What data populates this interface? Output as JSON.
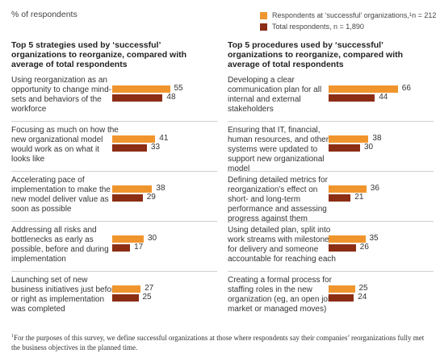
{
  "unit_label": "% of respondents",
  "legend": {
    "successful": {
      "label": "Respondents at ‘successful’ organizations,",
      "sup": "1",
      "n": " n = 212",
      "color": "#f0952d"
    },
    "total": {
      "label": "Total respondents, n = 1,890",
      "color": "#8c2e14"
    }
  },
  "chart_data": [
    {
      "type": "bar",
      "orientation": "horizontal",
      "title": "Top 5 strategies used by ‘successful’ organizations to reorganize, compared with average of total respondents",
      "categories": [
        "Using reorganization as an opportunity to change mind-sets and behaviors of the workforce",
        "Focusing as much on how the new organizational model would work as on what it looks like",
        "Accelerating pace of implementation to make the new model deliver value as soon as possible",
        "Addressing all risks and bottlenecks as early as possible, before and during implementation",
        "Launching set of new business initiatives just before or right as implementation was completed"
      ],
      "series": [
        {
          "name": "Respondents at ‘successful’ organizations, n = 212",
          "values": [
            55,
            41,
            38,
            30,
            27
          ]
        },
        {
          "name": "Total respondents, n = 1,890",
          "values": [
            48,
            33,
            29,
            17,
            25
          ]
        }
      ]
    },
    {
      "type": "bar",
      "orientation": "horizontal",
      "title": "Top 5 procedures used by ‘successful’ organizations to reorganize, compared with average of total respondents",
      "categories": [
        "Developing a clear communication plan for all internal and external stakeholders",
        "Ensuring that IT, financial, human resources, and other systems were updated to support new organizational model",
        "Defining detailed metrics for reorganization’s effect on short- and long-term performance and assessing progress against them",
        "Using detailed plan, split into work streams with milestones for delivery and someone accountable for reaching each",
        "Creating a formal process for staffing roles in the new organization (eg, an open job market or managed moves)"
      ],
      "series": [
        {
          "name": "Respondents at ‘successful’ organizations, n = 212",
          "values": [
            66,
            38,
            36,
            35,
            25
          ]
        },
        {
          "name": "Total respondents, n = 1,890",
          "values": [
            44,
            30,
            21,
            26,
            24
          ]
        }
      ]
    }
  ],
  "footnote": {
    "sup": "1",
    "text": "For the purposes of this survey, we define successful organizations at those where respondents say their companies’ reorganizations fully met the business objectives in the planned time."
  }
}
